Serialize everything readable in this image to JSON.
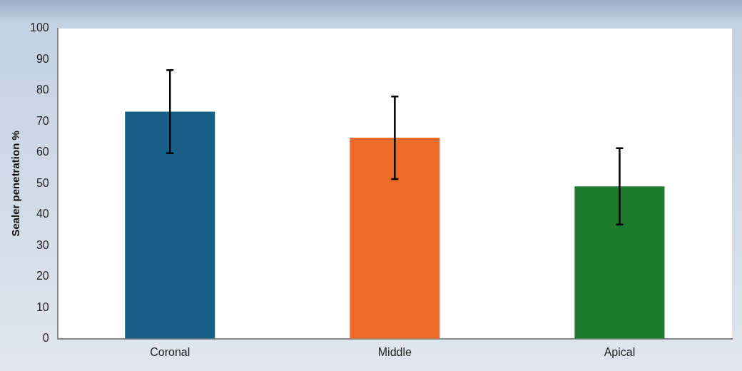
{
  "chart_data": {
    "type": "bar",
    "ylabel": "Sealer penetration %",
    "categories": [
      "Coronal",
      "Middle",
      "Apical"
    ],
    "values": [
      73.2,
      64.8,
      49.1
    ],
    "colors": [
      "#175f86",
      "#ec6b2a",
      "#1e7a2c"
    ],
    "errors": [
      13.4,
      13.3,
      12.3
    ],
    "ylim": [
      0,
      100
    ],
    "yticks": [
      0,
      10,
      20,
      30,
      40,
      50,
      60,
      70,
      80,
      90,
      100
    ],
    "grid": false,
    "legend": false
  }
}
